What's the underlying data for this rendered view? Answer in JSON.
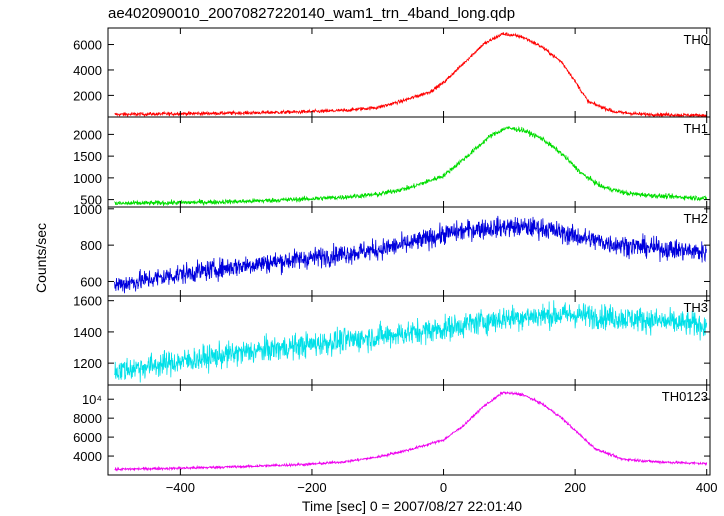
{
  "title": "ae402090010_20070827220140_wam1_trn_4band_long.qdp",
  "chart_data": {
    "type": "line",
    "title": "ae402090010_20070827220140_wam1_trn_4band_long.qdp",
    "xlabel": "Time [sec] 0 = 2007/08/27 22:01:40",
    "ylabel": "Counts/sec",
    "xlim": [
      -510,
      405
    ],
    "x_ticks": [
      -400,
      -200,
      0,
      200,
      400
    ],
    "x_tick_labels": [
      "−400",
      "−200",
      "0",
      "200",
      "400"
    ],
    "series": [
      {
        "name": "TH0",
        "color": "#ff0000",
        "ylim": [
          300,
          7300
        ],
        "y_ticks": [
          2000,
          4000,
          6000
        ],
        "y_tick_labels": [
          "2000",
          "4000",
          "6000"
        ],
        "noise": 70,
        "points": [
          [
            -500,
            500
          ],
          [
            -400,
            560
          ],
          [
            -300,
            620
          ],
          [
            -200,
            720
          ],
          [
            -150,
            820
          ],
          [
            -100,
            1050
          ],
          [
            -60,
            1600
          ],
          [
            -20,
            2300
          ],
          [
            0,
            3000
          ],
          [
            30,
            4500
          ],
          [
            60,
            6000
          ],
          [
            90,
            6850
          ],
          [
            120,
            6600
          ],
          [
            150,
            5800
          ],
          [
            180,
            4600
          ],
          [
            195,
            3500
          ],
          [
            220,
            1500
          ],
          [
            260,
            700
          ],
          [
            300,
            520
          ],
          [
            400,
            420
          ]
        ]
      },
      {
        "name": "TH1",
        "color": "#00dd00",
        "ylim": [
          330,
          2400
        ],
        "y_ticks": [
          500,
          1000,
          1500,
          2000
        ],
        "y_tick_labels": [
          "500",
          "1000",
          "1500",
          "2000"
        ],
        "noise": 28,
        "points": [
          [
            -500,
            410
          ],
          [
            -400,
            430
          ],
          [
            -300,
            460
          ],
          [
            -200,
            520
          ],
          [
            -150,
            560
          ],
          [
            -100,
            620
          ],
          [
            -50,
            780
          ],
          [
            0,
            1050
          ],
          [
            40,
            1550
          ],
          [
            70,
            1950
          ],
          [
            95,
            2150
          ],
          [
            120,
            2100
          ],
          [
            150,
            1900
          ],
          [
            180,
            1550
          ],
          [
            210,
            1100
          ],
          [
            240,
            800
          ],
          [
            280,
            640
          ],
          [
            330,
            580
          ],
          [
            400,
            530
          ]
        ]
      },
      {
        "name": "TH2",
        "color": "#0000dd",
        "ylim": [
          520,
          1010
        ],
        "y_ticks": [
          600,
          800,
          1000
        ],
        "y_tick_labels": [
          "600",
          "800",
          "1000"
        ],
        "noise": 28,
        "points": [
          [
            -500,
            580
          ],
          [
            -400,
            640
          ],
          [
            -300,
            690
          ],
          [
            -200,
            730
          ],
          [
            -100,
            775
          ],
          [
            -50,
            810
          ],
          [
            0,
            860
          ],
          [
            50,
            890
          ],
          [
            100,
            900
          ],
          [
            150,
            895
          ],
          [
            200,
            850
          ],
          [
            250,
            810
          ],
          [
            300,
            790
          ],
          [
            400,
            760
          ]
        ]
      },
      {
        "name": "TH3",
        "color": "#00e0e8",
        "ylim": [
          1060,
          1630
        ],
        "y_ticks": [
          1200,
          1400,
          1600
        ],
        "y_tick_labels": [
          "1200",
          "1400",
          "1600"
        ],
        "noise": 40,
        "points": [
          [
            -500,
            1150
          ],
          [
            -400,
            1210
          ],
          [
            -300,
            1270
          ],
          [
            -200,
            1320
          ],
          [
            -100,
            1370
          ],
          [
            0,
            1420
          ],
          [
            50,
            1460
          ],
          [
            100,
            1490
          ],
          [
            150,
            1505
          ],
          [
            200,
            1510
          ],
          [
            300,
            1480
          ],
          [
            400,
            1440
          ]
        ]
      },
      {
        "name": "TH0123",
        "color": "#ee00ee",
        "ylim": [
          2000,
          11500
        ],
        "y_ticks": [
          4000,
          6000,
          8000,
          10000
        ],
        "y_tick_labels": [
          "4000",
          "6000",
          "8000",
          "10⁴"
        ],
        "noise": 70,
        "points": [
          [
            -500,
            2600
          ],
          [
            -400,
            2720
          ],
          [
            -300,
            2900
          ],
          [
            -200,
            3150
          ],
          [
            -150,
            3400
          ],
          [
            -100,
            3900
          ],
          [
            -50,
            4700
          ],
          [
            0,
            5700
          ],
          [
            30,
            7200
          ],
          [
            60,
            9200
          ],
          [
            90,
            10700
          ],
          [
            120,
            10500
          ],
          [
            150,
            9500
          ],
          [
            180,
            8000
          ],
          [
            200,
            6700
          ],
          [
            230,
            4800
          ],
          [
            270,
            3700
          ],
          [
            320,
            3400
          ],
          [
            400,
            3200
          ]
        ]
      }
    ]
  }
}
